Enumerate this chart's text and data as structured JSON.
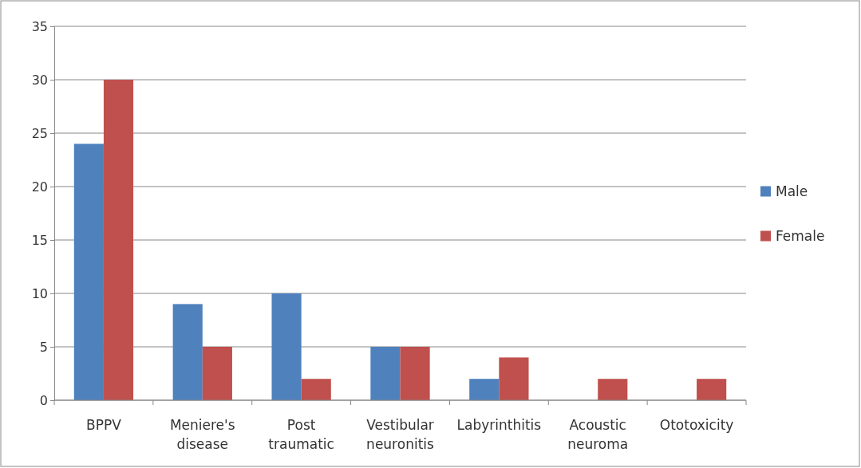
{
  "chart_data": {
    "type": "bar",
    "categories": [
      "BPPV",
      "Meniere's disease",
      "Post traumatic",
      "Vestibular neuronitis",
      "Labyrinthitis",
      "Acoustic neuroma",
      "Ototoxicity"
    ],
    "series": [
      {
        "name": "Male",
        "color": "#4f81bd",
        "values": [
          24,
          9,
          10,
          5,
          2,
          0,
          0
        ]
      },
      {
        "name": "Female",
        "color": "#c0504d",
        "values": [
          30,
          5,
          2,
          5,
          4,
          2,
          2
        ]
      }
    ],
    "ylim": [
      0,
      35
    ],
    "yticks": [
      0,
      5,
      10,
      15,
      20,
      25,
      30,
      35
    ],
    "grid": "y",
    "legend": "right"
  }
}
